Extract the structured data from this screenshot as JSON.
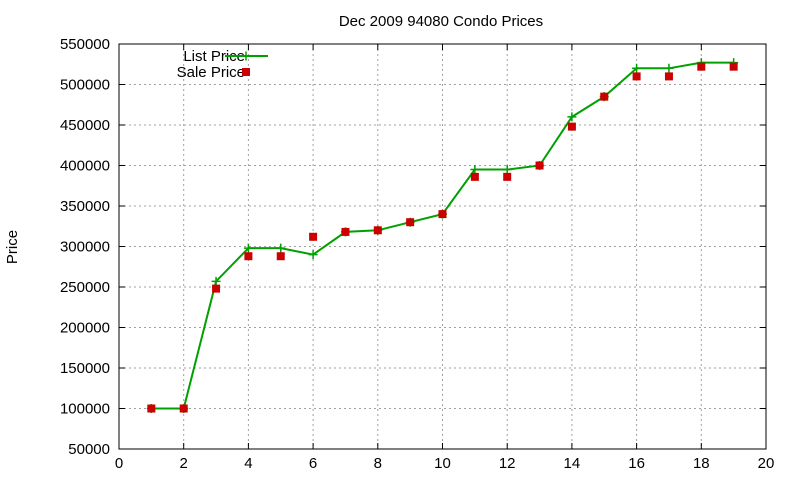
{
  "chart_data": {
    "type": "line",
    "title": "Dec 2009 94080 Condo Prices",
    "xlabel": "",
    "ylabel": "Price",
    "xlim": [
      0,
      20
    ],
    "ylim": [
      50000,
      550000
    ],
    "x_ticks": [
      0,
      2,
      4,
      6,
      8,
      10,
      12,
      14,
      16,
      18,
      20
    ],
    "y_ticks": [
      50000,
      100000,
      150000,
      200000,
      250000,
      300000,
      350000,
      400000,
      450000,
      500000,
      550000
    ],
    "grid": true,
    "legend_position": "top-left",
    "series": [
      {
        "name": "List Price",
        "style": "line-with-plus-markers",
        "color": "#00a000",
        "x": [
          1,
          2,
          3,
          4,
          5,
          6,
          7,
          8,
          9,
          10,
          11,
          12,
          13,
          14,
          15,
          16,
          17,
          18,
          19
        ],
        "y": [
          100000,
          100000,
          257000,
          298000,
          298000,
          290000,
          318000,
          320000,
          330000,
          340000,
          395000,
          395000,
          400000,
          460000,
          485000,
          520000,
          520000,
          527000,
          527000
        ]
      },
      {
        "name": "Sale Price",
        "style": "square-markers",
        "color": "#cc0000",
        "x": [
          1,
          2,
          3,
          4,
          5,
          6,
          7,
          8,
          9,
          10,
          11,
          12,
          13,
          14,
          15,
          16,
          17,
          18,
          19
        ],
        "y": [
          100000,
          100000,
          248000,
          288000,
          288000,
          312000,
          318000,
          320000,
          330000,
          340000,
          386000,
          386000,
          400000,
          448000,
          485000,
          510000,
          510000,
          522000,
          522000
        ]
      }
    ]
  }
}
